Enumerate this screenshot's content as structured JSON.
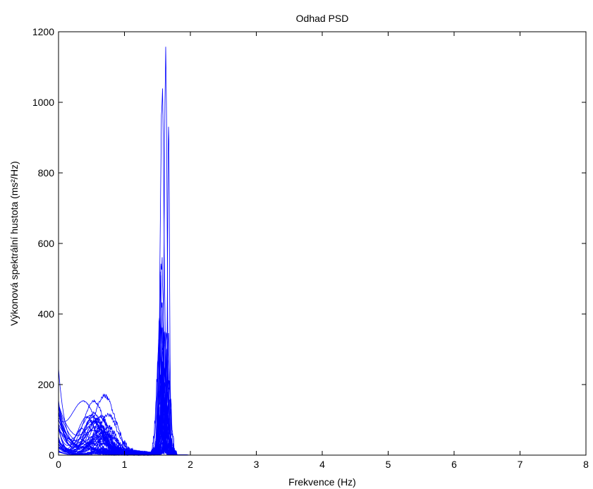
{
  "chart_data": {
    "type": "line",
    "title": "Odhad PSD",
    "xlabel": "Frekvence (Hz)",
    "ylabel": "Výkonová spektrální hustota (ms²/Hz)",
    "xlim": [
      0,
      8
    ],
    "ylim": [
      0,
      1200
    ],
    "xticks": [
      0,
      1,
      2,
      3,
      4,
      5,
      6,
      7,
      8
    ],
    "yticks": [
      0,
      200,
      400,
      600,
      800,
      1000,
      1200
    ],
    "grid": false,
    "legend": "none",
    "x_end": 7.5,
    "color": "#0000ff",
    "series_count": 40,
    "peaks": [
      {
        "x": 1.62,
        "y": 1100
      },
      {
        "x": 1.6,
        "y": 995
      },
      {
        "x": 1.63,
        "y": 900
      },
      {
        "x": 1.66,
        "y": 520
      },
      {
        "x": 1.58,
        "y": 470
      },
      {
        "x": 1.55,
        "y": 390
      },
      {
        "x": 0.0,
        "y": 265
      },
      {
        "x": 0.72,
        "y": 178
      },
      {
        "x": 0.45,
        "y": 140
      },
      {
        "x": 0.38,
        "y": 105
      }
    ]
  }
}
